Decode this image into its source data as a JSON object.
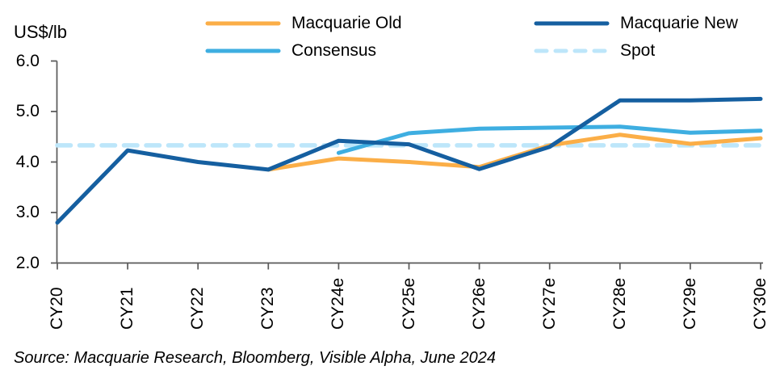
{
  "chart_data": {
    "type": "line",
    "title": "",
    "xlabel": "",
    "ylabel": "US$/lb",
    "ylim": [
      2.0,
      6.0
    ],
    "y_ticks": [
      {
        "value": 6.0,
        "label": "6.0"
      },
      {
        "value": 5.0,
        "label": "5.0"
      },
      {
        "value": 4.0,
        "label": "4.0"
      },
      {
        "value": 3.0,
        "label": "3.0"
      },
      {
        "value": 2.0,
        "label": "2.0"
      }
    ],
    "categories": [
      "CY20",
      "CY21",
      "CY22",
      "CY23",
      "CY24e",
      "CY25e",
      "CY26e",
      "CY27e",
      "CY28e",
      "CY29e",
      "CY30e"
    ],
    "grid": false,
    "legend_position": "top",
    "series": [
      {
        "name": "Macquarie Old",
        "color": "#FBAE47",
        "style": "solid",
        "values": [
          null,
          null,
          null,
          3.85,
          4.07,
          4.0,
          3.9,
          4.33,
          4.54,
          4.36,
          4.47
        ]
      },
      {
        "name": "Macquarie New",
        "color": "#155FA0",
        "style": "solid",
        "values": [
          2.8,
          4.23,
          4.0,
          3.85,
          4.42,
          4.35,
          3.86,
          4.3,
          5.22,
          5.22,
          5.25
        ]
      },
      {
        "name": "Consensus",
        "color": "#3EAEE1",
        "style": "solid",
        "values": [
          null,
          null,
          null,
          null,
          4.18,
          4.57,
          4.66,
          4.68,
          4.7,
          4.58,
          4.62
        ]
      },
      {
        "name": "Spot",
        "color": "#BDE6FA",
        "style": "dashed",
        "values": [
          4.33,
          4.33,
          4.33,
          4.33,
          4.33,
          4.33,
          4.33,
          4.33,
          4.33,
          4.33,
          4.33
        ]
      }
    ]
  },
  "source": "Source: Macquarie Research, Bloomberg, Visible Alpha, June 2024"
}
